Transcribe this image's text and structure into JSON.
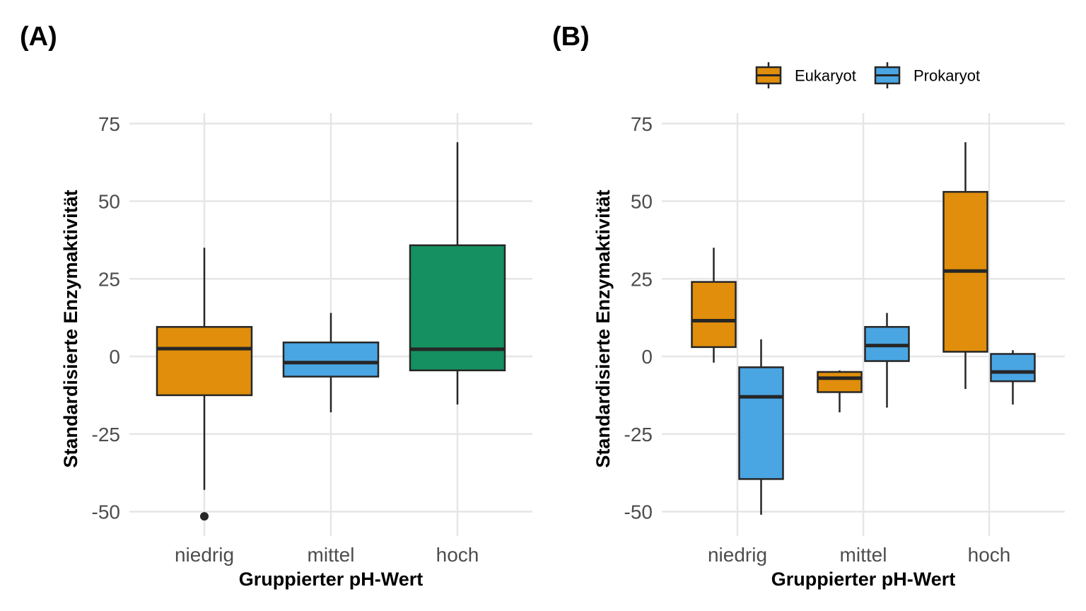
{
  "chart_data": [
    {
      "type": "boxplot",
      "panel_label": "(A)",
      "xlabel": "Gruppierter pH-Wert",
      "ylabel": "Standardisierte Enzymaktivität",
      "categories": [
        "niedrig",
        "mittel",
        "hoch"
      ],
      "ylim": [
        -55,
        75
      ],
      "yticks": [
        75,
        50,
        25,
        0,
        -25,
        -50
      ],
      "ytick_labels": [
        "75",
        "50",
        "25",
        "0",
        "-25",
        "-50"
      ],
      "grid": true,
      "boxes": [
        {
          "category": "niedrig",
          "color": "#E08E0B",
          "whisker_low": -43,
          "q1": -12.5,
          "median": 2.5,
          "q3": 9.5,
          "whisker_high": 35,
          "outliers": [
            -51.5
          ]
        },
        {
          "category": "mittel",
          "color": "#4AA5E3",
          "whisker_low": -18,
          "q1": -6.5,
          "median": -2,
          "q3": 4.5,
          "whisker_high": 14,
          "outliers": []
        },
        {
          "category": "hoch",
          "color": "#159060",
          "whisker_low": -15.5,
          "q1": -4.5,
          "median": 2.3,
          "q3": 35.8,
          "whisker_high": 69,
          "outliers": []
        }
      ]
    },
    {
      "type": "boxplot",
      "panel_label": "(B)",
      "xlabel": "Gruppierter pH-Wert",
      "ylabel": "Standardisierte Enzymaktivität",
      "categories": [
        "niedrig",
        "mittel",
        "hoch"
      ],
      "ylim": [
        -55,
        75
      ],
      "yticks": [
        75,
        50,
        25,
        0,
        -25,
        -50
      ],
      "ytick_labels": [
        "75",
        "50",
        "25",
        "0",
        "-25",
        "-50"
      ],
      "grid": true,
      "legend_position": "top-right",
      "series": [
        {
          "name": "Eukaryot",
          "color": "#E08E0B"
        },
        {
          "name": "Prokaryot",
          "color": "#4AA5E3"
        }
      ],
      "boxes": [
        {
          "category": "niedrig",
          "series": "Eukaryot",
          "whisker_low": -2,
          "q1": 3,
          "median": 11.5,
          "q3": 24,
          "whisker_high": 35,
          "outliers": []
        },
        {
          "category": "niedrig",
          "series": "Prokaryot",
          "whisker_low": -51,
          "q1": -39.5,
          "median": -13,
          "q3": -3.5,
          "whisker_high": 5.5,
          "outliers": []
        },
        {
          "category": "mittel",
          "series": "Eukaryot",
          "whisker_low": -18,
          "q1": -11.5,
          "median": -7,
          "q3": -5,
          "whisker_high": -4.5,
          "outliers": []
        },
        {
          "category": "mittel",
          "series": "Prokaryot",
          "whisker_low": -16.5,
          "q1": -1.5,
          "median": 3.5,
          "q3": 9.5,
          "whisker_high": 14,
          "outliers": []
        },
        {
          "category": "hoch",
          "series": "Eukaryot",
          "whisker_low": -10.5,
          "q1": 1.5,
          "median": 27.5,
          "q3": 53,
          "whisker_high": 69,
          "outliers": []
        },
        {
          "category": "hoch",
          "series": "Prokaryot",
          "whisker_low": -15.5,
          "q1": -8,
          "median": -5,
          "q3": 0.8,
          "whisker_high": 2,
          "outliers": []
        }
      ]
    }
  ]
}
